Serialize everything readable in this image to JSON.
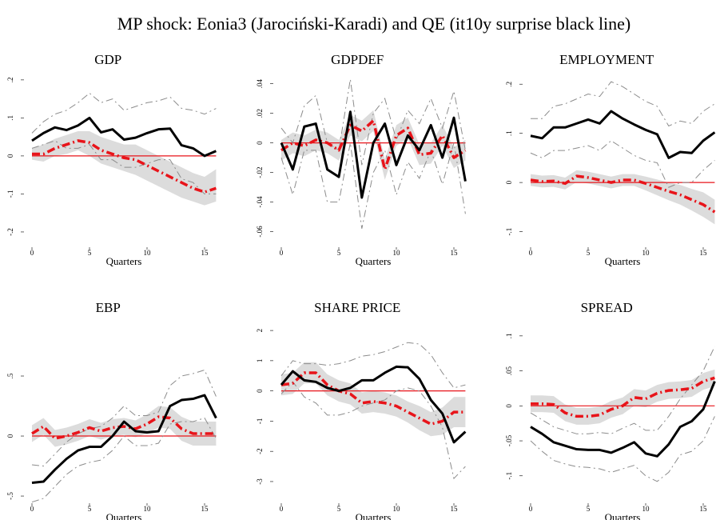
{
  "title": "MP shock: Eonia3 (Jarociński-Karadi) and QE (it10y surprise black line)",
  "chart_data": [
    {
      "type": "line",
      "title": "GDP",
      "xlabel": "Quarters",
      "hline": 0,
      "hline_color": "#e8141a",
      "x": [
        0,
        1,
        2,
        3,
        4,
        5,
        6,
        7,
        8,
        9,
        10,
        11,
        12,
        13,
        14,
        15,
        16
      ],
      "xlim": [
        0,
        16
      ],
      "xticks": [
        0,
        5,
        10,
        15
      ],
      "ylim": [
        -0.238,
        0.225
      ],
      "yticks": [
        {
          "value": 0.2,
          "label": ".2"
        },
        {
          "value": 0.1,
          "label": ".1"
        },
        0,
        {
          "value": -0.1,
          "label": "-.1"
        },
        {
          "value": -0.2,
          "label": "-.2"
        }
      ],
      "series": [
        {
          "color": "#000000",
          "dash": "solid",
          "ci_style": "dashed",
          "values": [
            0.04,
            0.06,
            0.075,
            0.068,
            0.08,
            0.1,
            0.062,
            0.07,
            0.043,
            0.048,
            0.06,
            0.07,
            0.072,
            0.028,
            0.02,
            0.0,
            0.013
          ],
          "ci_upper": [
            0.06,
            0.09,
            0.11,
            0.12,
            0.14,
            0.165,
            0.14,
            0.15,
            0.12,
            0.13,
            0.14,
            0.145,
            0.155,
            0.125,
            0.12,
            0.11,
            0.125
          ],
          "ci_lower": [
            0.02,
            0.03,
            0.04,
            0.02,
            0.02,
            0.03,
            -0.01,
            -0.01,
            -0.03,
            -0.03,
            -0.02,
            -0.01,
            -0.01,
            -0.06,
            -0.07,
            -0.1,
            -0.1
          ]
        },
        {
          "color": "#e8141a",
          "dash": "dashdot",
          "ci_style": "band",
          "values": [
            0.005,
            0.005,
            0.02,
            0.03,
            0.04,
            0.035,
            0.015,
            0.005,
            -0.005,
            -0.01,
            -0.025,
            -0.04,
            -0.055,
            -0.07,
            -0.085,
            -0.095,
            -0.085
          ],
          "ci_lower": [
            -0.01,
            -0.015,
            0.0,
            0.005,
            0.015,
            0.0,
            -0.02,
            -0.03,
            -0.04,
            -0.05,
            -0.065,
            -0.08,
            -0.095,
            -0.11,
            -0.12,
            -0.13,
            -0.12
          ],
          "ci_upper": [
            0.02,
            0.03,
            0.045,
            0.055,
            0.065,
            0.065,
            0.05,
            0.04,
            0.03,
            0.03,
            0.015,
            0.0,
            -0.015,
            -0.03,
            -0.045,
            -0.055,
            -0.035
          ]
        }
      ]
    },
    {
      "type": "line",
      "title": "GDPDEF",
      "xlabel": "Quarters",
      "hline": 0,
      "hline_color": "#e8141a",
      "x": [
        0,
        1,
        2,
        3,
        4,
        5,
        6,
        7,
        8,
        9,
        10,
        11,
        12,
        13,
        14,
        15,
        16
      ],
      "xlim": [
        0,
        16
      ],
      "xticks": [
        0,
        5,
        10,
        15
      ],
      "ylim": [
        -0.07,
        0.049
      ],
      "yticks": [
        {
          "value": 0.04,
          "label": ".04"
        },
        {
          "value": 0.02,
          "label": ".02"
        },
        0,
        {
          "value": -0.02,
          "label": "-.02"
        },
        {
          "value": -0.04,
          "label": "-.04"
        },
        {
          "value": -0.06,
          "label": "-.06"
        }
      ],
      "series": [
        {
          "color": "#000000",
          "dash": "solid",
          "ci_style": "dashed",
          "values": [
            0.0,
            -0.018,
            0.011,
            0.013,
            -0.018,
            -0.023,
            0.021,
            -0.037,
            0.0,
            0.013,
            -0.015,
            0.005,
            -0.005,
            0.012,
            -0.01,
            0.017,
            -0.026
          ],
          "ci_upper": [
            0.01,
            0.0,
            0.025,
            0.032,
            0.0,
            -0.005,
            0.043,
            -0.015,
            0.02,
            0.03,
            0.002,
            0.022,
            0.013,
            0.03,
            0.01,
            0.035,
            -0.005
          ],
          "ci_lower": [
            -0.01,
            -0.035,
            -0.005,
            -0.005,
            -0.04,
            -0.04,
            0.0,
            -0.058,
            -0.02,
            -0.005,
            -0.035,
            -0.013,
            -0.024,
            -0.005,
            -0.028,
            0.0,
            -0.048
          ]
        },
        {
          "color": "#e8141a",
          "dash": "dashdot",
          "ci_style": "band",
          "values": [
            -0.005,
            0.0,
            -0.002,
            0.002,
            0.0,
            -0.005,
            0.012,
            0.008,
            0.015,
            -0.018,
            0.005,
            0.01,
            -0.008,
            -0.007,
            0.005,
            -0.01,
            -0.005
          ],
          "ci_lower": [
            -0.012,
            -0.007,
            -0.009,
            -0.005,
            -0.007,
            -0.012,
            0.005,
            0.001,
            0.008,
            -0.025,
            -0.002,
            0.003,
            -0.015,
            -0.014,
            -0.002,
            -0.017,
            -0.012
          ],
          "ci_upper": [
            0.002,
            0.007,
            0.005,
            0.009,
            0.007,
            0.002,
            0.019,
            0.015,
            0.022,
            -0.011,
            0.012,
            0.017,
            -0.001,
            0.0,
            0.012,
            -0.003,
            0.002
          ]
        }
      ]
    },
    {
      "type": "line",
      "title": "EMPLOYMENT",
      "xlabel": "Quarters",
      "hline": 0,
      "hline_color": "#e8141a",
      "x": [
        0,
        1,
        2,
        3,
        4,
        5,
        6,
        7,
        8,
        9,
        10,
        11,
        12,
        13,
        14,
        15,
        16
      ],
      "xlim": [
        0,
        16
      ],
      "xticks": [
        0,
        5,
        10,
        15
      ],
      "ylim": [
        -0.13,
        0.228
      ],
      "yticks": [
        {
          "value": 0.2,
          "label": ".2"
        },
        {
          "value": 0.1,
          "label": ".1"
        },
        0,
        {
          "value": -0.1,
          "label": "-.1"
        }
      ],
      "series": [
        {
          "color": "#000000",
          "dash": "solid",
          "ci_style": "dashed",
          "values": [
            0.095,
            0.09,
            0.112,
            0.112,
            0.12,
            0.128,
            0.12,
            0.145,
            0.13,
            0.118,
            0.107,
            0.098,
            0.05,
            0.062,
            0.06,
            0.085,
            0.102
          ],
          "ci_upper": [
            0.13,
            0.13,
            0.155,
            0.16,
            0.17,
            0.18,
            0.175,
            0.205,
            0.195,
            0.18,
            0.165,
            0.155,
            0.115,
            0.125,
            0.12,
            0.145,
            0.16
          ],
          "ci_lower": [
            0.06,
            0.05,
            0.065,
            0.065,
            0.07,
            0.075,
            0.065,
            0.085,
            0.07,
            0.055,
            0.045,
            0.04,
            -0.01,
            0.0,
            0.0,
            0.025,
            0.045
          ]
        },
        {
          "color": "#e8141a",
          "dash": "dashdot",
          "ci_style": "band",
          "values": [
            0.005,
            0.002,
            0.003,
            -0.002,
            0.013,
            0.01,
            0.005,
            0.0,
            0.005,
            0.005,
            -0.002,
            -0.01,
            -0.018,
            -0.025,
            -0.035,
            -0.045,
            -0.06
          ],
          "ci_lower": [
            -0.007,
            -0.01,
            -0.009,
            -0.014,
            0.001,
            -0.002,
            -0.007,
            -0.012,
            -0.007,
            -0.007,
            -0.016,
            -0.026,
            -0.036,
            -0.045,
            -0.057,
            -0.07,
            -0.085
          ],
          "ci_upper": [
            0.017,
            0.014,
            0.015,
            0.01,
            0.025,
            0.022,
            0.017,
            0.012,
            0.017,
            0.017,
            0.012,
            0.006,
            0.0,
            -0.005,
            -0.013,
            -0.02,
            -0.035
          ]
        }
      ]
    },
    {
      "type": "line",
      "title": "EBP",
      "xlabel": "Quarters",
      "hline": 0,
      "hline_color": "#e8141a",
      "x": [
        0,
        1,
        2,
        3,
        4,
        5,
        6,
        7,
        8,
        9,
        10,
        11,
        12,
        13,
        14,
        15,
        16
      ],
      "xlim": [
        0,
        16
      ],
      "xticks": [
        0,
        5,
        10,
        15
      ],
      "ylim": [
        -0.553,
        0.98
      ],
      "yticks": [
        {
          "value": 0.5,
          "label": ".5"
        },
        0,
        {
          "value": -0.5,
          "label": "-.5"
        }
      ],
      "series": [
        {
          "color": "#000000",
          "dash": "solid",
          "ci_style": "dashed",
          "values": [
            -0.39,
            -0.38,
            -0.28,
            -0.19,
            -0.12,
            -0.09,
            -0.09,
            0.0,
            0.12,
            0.04,
            0.03,
            0.04,
            0.25,
            0.3,
            0.31,
            0.34,
            0.15
          ],
          "ci_upper": [
            -0.24,
            -0.25,
            -0.15,
            -0.05,
            0.02,
            0.06,
            0.08,
            0.15,
            0.25,
            0.17,
            0.17,
            0.2,
            0.42,
            0.5,
            0.52,
            0.55,
            0.33
          ],
          "ci_lower": [
            -0.55,
            -0.52,
            -0.42,
            -0.32,
            -0.25,
            -0.22,
            -0.2,
            -0.12,
            0.0,
            -0.08,
            -0.08,
            -0.06,
            0.1,
            0.12,
            0.12,
            0.15,
            -0.02
          ]
        },
        {
          "color": "#e8141a",
          "dash": "dashdot",
          "ci_style": "band",
          "values": [
            0.02,
            0.08,
            -0.02,
            0.0,
            0.03,
            0.07,
            0.04,
            0.07,
            0.08,
            0.06,
            0.1,
            0.16,
            0.15,
            0.06,
            0.02,
            0.02,
            0.02
          ],
          "ci_lower": [
            -0.05,
            0.01,
            -0.09,
            -0.07,
            -0.04,
            0.0,
            -0.03,
            0.0,
            0.01,
            -0.01,
            0.02,
            0.07,
            0.06,
            -0.04,
            -0.08,
            -0.08,
            -0.08
          ],
          "ci_upper": [
            0.09,
            0.15,
            0.05,
            0.07,
            0.1,
            0.14,
            0.11,
            0.14,
            0.15,
            0.13,
            0.18,
            0.25,
            0.24,
            0.16,
            0.12,
            0.12,
            0.12
          ]
        }
      ]
    },
    {
      "type": "line",
      "title": "SHARE PRICE",
      "xlabel": "Quarters",
      "hline": 0,
      "hline_color": "#e8141a",
      "x": [
        0,
        1,
        2,
        3,
        4,
        5,
        6,
        7,
        8,
        9,
        10,
        11,
        12,
        13,
        14,
        15,
        16
      ],
      "xlim": [
        0,
        16
      ],
      "xticks": [
        0,
        5,
        10,
        15
      ],
      "ylim": [
        -3.69,
        2.4
      ],
      "yticks": [
        2,
        1,
        0,
        -1,
        -2,
        -3
      ],
      "series": [
        {
          "color": "#000000",
          "dash": "solid",
          "ci_style": "dashed",
          "values": [
            0.2,
            0.65,
            0.35,
            0.3,
            0.1,
            0.0,
            0.1,
            0.35,
            0.35,
            0.6,
            0.8,
            0.78,
            0.4,
            -0.3,
            -0.75,
            -1.7,
            -1.35
          ],
          "ci_upper": [
            0.5,
            1.0,
            0.9,
            0.9,
            0.85,
            0.9,
            1.0,
            1.15,
            1.2,
            1.3,
            1.45,
            1.6,
            1.55,
            1.2,
            0.6,
            0.1,
            0.2
          ],
          "ci_lower": [
            -0.1,
            0.3,
            -0.2,
            -0.4,
            -0.8,
            -0.8,
            -0.7,
            -0.5,
            -0.4,
            -0.3,
            0.0,
            0.1,
            0.0,
            -0.5,
            -1.2,
            -2.9,
            -2.5
          ]
        },
        {
          "color": "#e8141a",
          "dash": "dashdot",
          "ci_style": "band",
          "values": [
            0.2,
            0.25,
            0.6,
            0.6,
            0.2,
            0.0,
            -0.1,
            -0.4,
            -0.35,
            -0.4,
            -0.5,
            -0.7,
            -0.9,
            -1.1,
            -1.0,
            -0.7,
            -0.7
          ],
          "ci_lower": [
            -0.15,
            -0.1,
            0.25,
            0.25,
            -0.15,
            -0.35,
            -0.45,
            -0.75,
            -0.7,
            -0.75,
            -0.85,
            -1.05,
            -1.3,
            -1.5,
            -1.45,
            -1.2,
            -1.2
          ],
          "ci_upper": [
            0.55,
            0.6,
            0.95,
            0.95,
            0.55,
            0.35,
            0.25,
            -0.05,
            0.0,
            -0.05,
            -0.15,
            -0.35,
            -0.5,
            -0.7,
            -0.55,
            -0.2,
            -0.2
          ]
        }
      ]
    },
    {
      "type": "line",
      "title": "SPREAD",
      "xlabel": "Quarters",
      "hline": 0,
      "hline_color": "#e8141a",
      "x": [
        0,
        1,
        2,
        3,
        4,
        5,
        6,
        7,
        8,
        9,
        10,
        11,
        12,
        13,
        14,
        15,
        16
      ],
      "xlim": [
        0,
        16
      ],
      "xticks": [
        0,
        5,
        10,
        15
      ],
      "ylim": [
        -0.138,
        0.125
      ],
      "yticks": [
        {
          "value": 0.1,
          "label": ".1"
        },
        {
          "value": 0.05,
          "label": ".05"
        },
        0,
        {
          "value": -0.05,
          "label": "-.05"
        },
        {
          "value": -0.1,
          "label": "-.1"
        }
      ],
      "series": [
        {
          "color": "#000000",
          "dash": "solid",
          "ci_style": "dashed",
          "values": [
            -0.03,
            -0.04,
            -0.052,
            -0.057,
            -0.062,
            -0.063,
            -0.063,
            -0.067,
            -0.06,
            -0.052,
            -0.068,
            -0.072,
            -0.055,
            -0.03,
            -0.022,
            -0.005,
            0.035
          ],
          "ci_upper": [
            -0.01,
            -0.02,
            -0.03,
            -0.035,
            -0.04,
            -0.04,
            -0.038,
            -0.04,
            -0.032,
            -0.025,
            -0.035,
            -0.035,
            -0.015,
            0.01,
            0.03,
            0.05,
            0.085
          ],
          "ci_lower": [
            -0.05,
            -0.065,
            -0.078,
            -0.083,
            -0.087,
            -0.088,
            -0.09,
            -0.095,
            -0.09,
            -0.085,
            -0.1,
            -0.108,
            -0.095,
            -0.07,
            -0.065,
            -0.05,
            -0.015
          ]
        },
        {
          "color": "#e8141a",
          "dash": "dashdot",
          "ci_style": "band",
          "values": [
            0.003,
            0.003,
            0.002,
            -0.01,
            -0.015,
            -0.015,
            -0.013,
            -0.005,
            0.0,
            0.012,
            0.01,
            0.018,
            0.022,
            0.023,
            0.025,
            0.035,
            0.04
          ],
          "ci_lower": [
            -0.009,
            -0.009,
            -0.01,
            -0.022,
            -0.027,
            -0.027,
            -0.025,
            -0.017,
            -0.012,
            0.0,
            -0.002,
            0.006,
            0.01,
            0.011,
            0.013,
            0.023,
            0.028
          ],
          "ci_upper": [
            0.015,
            0.015,
            0.014,
            0.002,
            -0.003,
            -0.003,
            -0.001,
            0.007,
            0.012,
            0.024,
            0.022,
            0.03,
            0.034,
            0.035,
            0.037,
            0.047,
            0.052
          ]
        }
      ]
    }
  ]
}
